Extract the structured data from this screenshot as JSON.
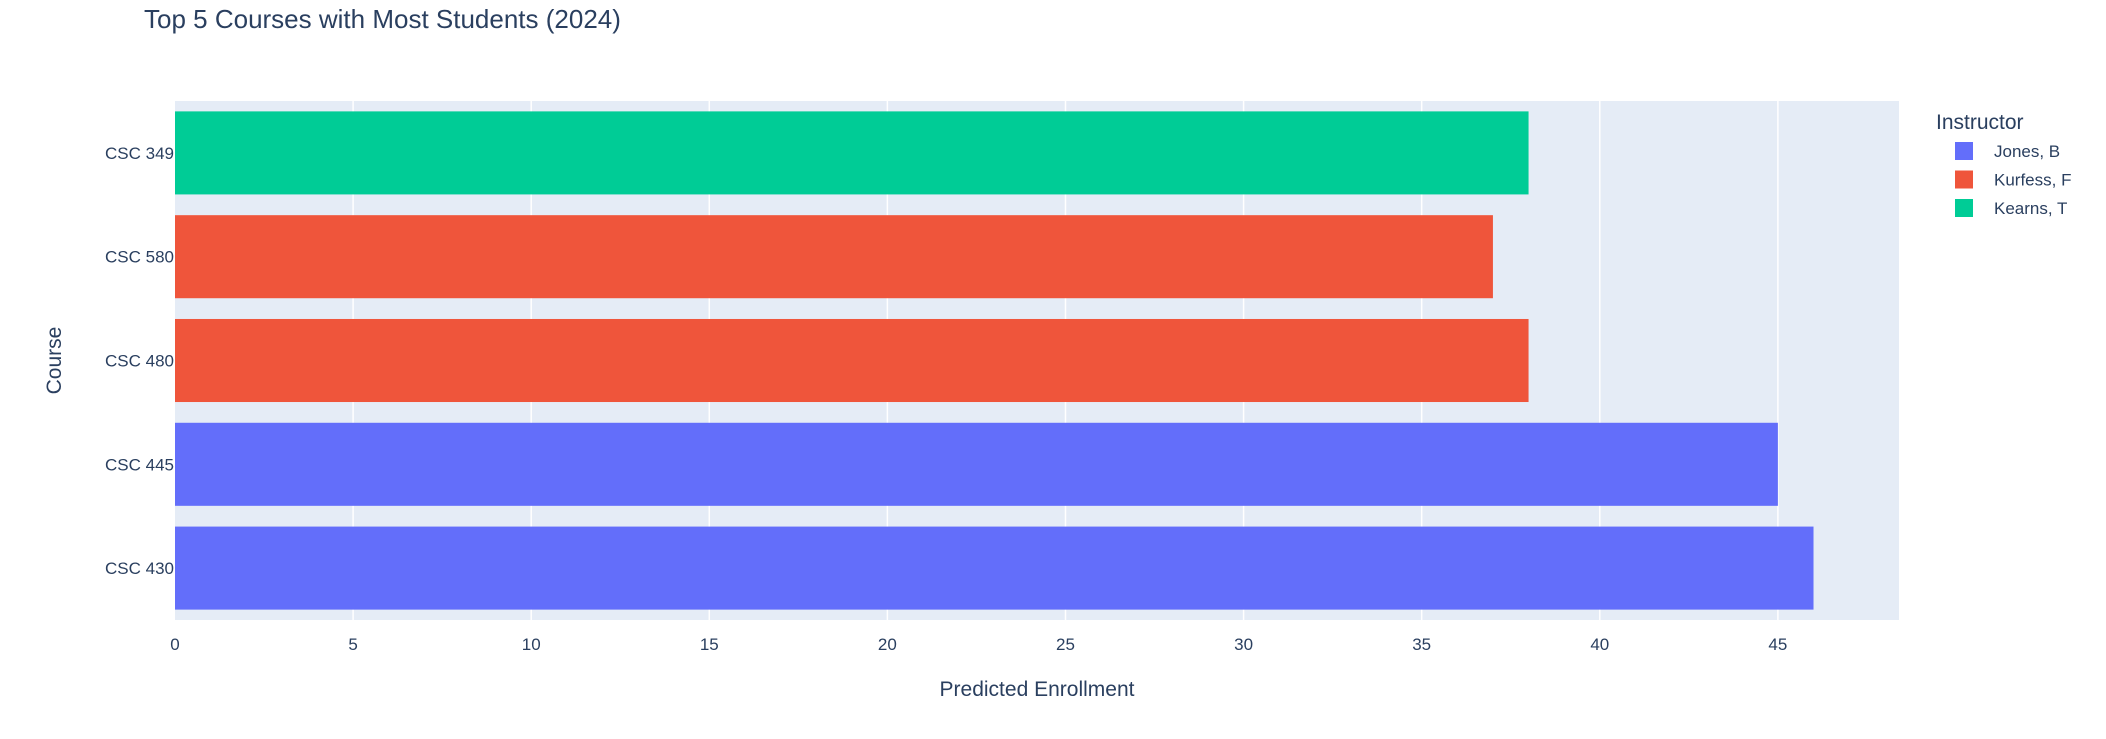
{
  "chart_data": {
    "type": "bar",
    "orientation": "horizontal",
    "title": "Top 5 Courses with Most Students (2024)",
    "xlabel": "Predicted Enrollment",
    "ylabel": "Course",
    "xlim": [
      0,
      48.4
    ],
    "xticks": [
      0,
      5,
      10,
      15,
      20,
      25,
      30,
      35,
      40,
      45
    ],
    "grid": true,
    "legend_title": "Instructor",
    "legend_position": "right",
    "categories": [
      "CSC 430",
      "CSC 445",
      "CSC 480",
      "CSC 580",
      "CSC 349"
    ],
    "series": [
      {
        "name": "Jones, B",
        "color": "#636efa",
        "points": [
          {
            "category": "CSC 430",
            "value": 46
          },
          {
            "category": "CSC 445",
            "value": 45
          }
        ]
      },
      {
        "name": "Kurfess, F",
        "color": "#ef553b",
        "points": [
          {
            "category": "CSC 480",
            "value": 38
          },
          {
            "category": "CSC 580",
            "value": 37
          }
        ]
      },
      {
        "name": "Kearns, T",
        "color": "#00cc96",
        "points": [
          {
            "category": "CSC 349",
            "value": 38
          }
        ]
      }
    ],
    "plot_background": "#e5ecf6",
    "grid_color": "#ffffff"
  }
}
